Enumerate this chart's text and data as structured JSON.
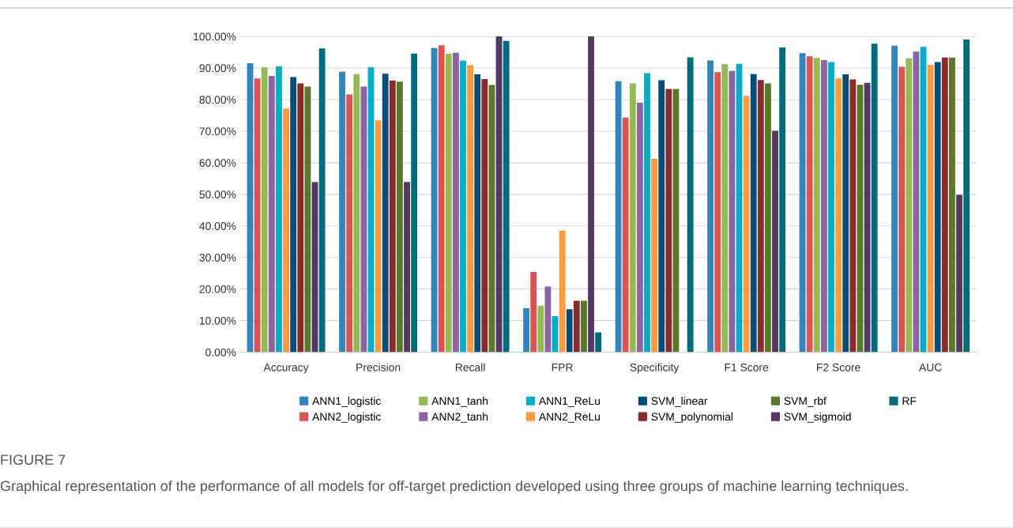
{
  "chart_data": {
    "type": "bar",
    "categories": [
      "Accuracy",
      "Precision",
      "Recall",
      "FPR",
      "Specificity",
      "F1 Score",
      "F2 Score",
      "AUC"
    ],
    "series": [
      {
        "name": "ANN1_logistic",
        "color": "#2e86c1",
        "values": [
          91.5,
          88.8,
          96.3,
          13.9,
          85.8,
          92.4,
          94.7,
          97.1
        ]
      },
      {
        "name": "ANN2_logistic",
        "color": "#e05252",
        "values": [
          86.7,
          81.6,
          97.2,
          25.4,
          74.3,
          88.7,
          93.7,
          90.4
        ]
      },
      {
        "name": "ANN1_tanh",
        "color": "#92bc50",
        "values": [
          90.2,
          88.1,
          94.5,
          14.7,
          85.1,
          91.2,
          93.2,
          93.1
        ]
      },
      {
        "name": "ANN2_tanh",
        "color": "#8e63a6",
        "values": [
          87.5,
          84.1,
          94.8,
          20.8,
          79.0,
          89.1,
          92.5,
          95.2
        ]
      },
      {
        "name": "ANN1_ReLu",
        "color": "#00afc9",
        "values": [
          90.5,
          90.2,
          92.3,
          11.4,
          88.4,
          91.3,
          91.9,
          96.7
        ]
      },
      {
        "name": "ANN2_ReLu",
        "color": "#ff9a3c",
        "values": [
          77.2,
          73.4,
          90.9,
          38.5,
          61.2,
          81.2,
          86.7,
          91.0
        ]
      },
      {
        "name": "SVM_linear",
        "color": "#074d7a",
        "values": [
          87.1,
          88.2,
          88.0,
          13.6,
          86.1,
          88.1,
          88.0,
          91.9
        ]
      },
      {
        "name": "SVM_polynomial",
        "color": "#8b2a2a",
        "values": [
          85.1,
          86.0,
          86.5,
          16.3,
          83.4,
          86.2,
          86.4,
          93.3
        ]
      },
      {
        "name": "SVM_rbf",
        "color": "#587a28",
        "values": [
          84.1,
          85.7,
          84.6,
          16.3,
          83.4,
          85.1,
          84.7,
          93.3
        ]
      },
      {
        "name": "SVM_sigmoid",
        "color": "#543762",
        "values": [
          53.9,
          53.9,
          100,
          100,
          0,
          70.1,
          85.3,
          49.8
        ]
      },
      {
        "name": "RF",
        "color": "#006d7d",
        "values": [
          96.2,
          94.6,
          98.6,
          6.3,
          93.4,
          96.5,
          97.7,
          99.0
        ]
      }
    ],
    "ylim": [
      0,
      100
    ],
    "yticks": [
      {
        "value": 0,
        "label": "0.00%"
      },
      {
        "value": 10,
        "label": "10.00%"
      },
      {
        "value": 20,
        "label": "20.00%"
      },
      {
        "value": 30,
        "label": "30.00%"
      },
      {
        "value": 40,
        "label": "40.00%"
      },
      {
        "value": 50,
        "label": "50.00%"
      },
      {
        "value": 60,
        "label": "60.00%"
      },
      {
        "value": 70,
        "label": "70.00%"
      },
      {
        "value": 80,
        "label": "80.00%"
      },
      {
        "value": 90,
        "label": "90.00%"
      },
      {
        "value": 100,
        "label": "100.00%"
      }
    ],
    "grid": "y",
    "legend": "bottom",
    "annotations": [
      "FIGURE 7",
      "Graphical representation of the performance of all models for off-target prediction developed using three groups of machine learning techniques."
    ]
  }
}
